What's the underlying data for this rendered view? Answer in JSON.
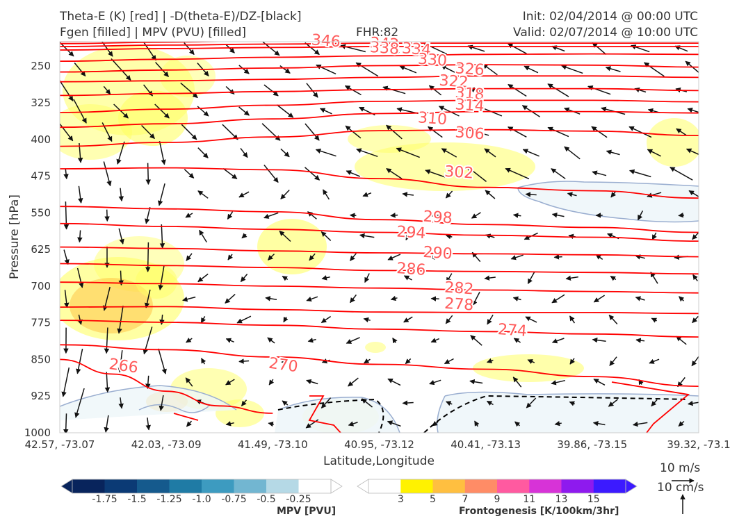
{
  "header": {
    "title_line1": "Theta-E (K) [red] | -D(theta-E)/DZ-[black]",
    "title_line2": "Fgen [filled] | MPV (PVU) [filled]",
    "fhr": "FHR:82",
    "init": "Init: 02/04/2014 @ 00:00 UTC",
    "valid": "Valid: 02/07/2014 @ 10:00 UTC"
  },
  "wind_key": {
    "speed": "10 m/s",
    "vertical": "10 cm/s"
  },
  "colors": {
    "theta_e": "#ff0000",
    "theta_label": "#ff5a5a",
    "mpv_outline": "#9aaed0",
    "fill_yellow": "#ffff66",
    "fill_orange": "#ffbf40"
  },
  "chart_data": {
    "type": "cross-section",
    "xlabel": "Latitude,Longitude",
    "ylabel": "Pressure [hPa]",
    "x_ticks": [
      "42.57, -73.07",
      "42.03, -73.09",
      "41.49, -73.10",
      "40.95, -73.12",
      "40.41, -73.13",
      "39.86, -73.15",
      "39.32, -73.1"
    ],
    "y_ticks": [
      250,
      325,
      400,
      475,
      550,
      625,
      700,
      775,
      850,
      925,
      1000
    ],
    "ylim": [
      1000,
      200
    ],
    "theta_e_contours": [
      {
        "level": 346,
        "label": "346",
        "points": [
          [
            0,
            200
          ],
          [
            1,
            197
          ],
          [
            2,
            194
          ],
          [
            3,
            192
          ],
          [
            4,
            192
          ],
          [
            5,
            192
          ],
          [
            6,
            192
          ]
        ]
      },
      {
        "level": 342,
        "label": "342",
        "points": [
          [
            0,
            204
          ],
          [
            1,
            201
          ],
          [
            2,
            198
          ],
          [
            3,
            196
          ],
          [
            4,
            196
          ],
          [
            5,
            196
          ],
          [
            6,
            196
          ]
        ]
      },
      {
        "level": 338,
        "label": "338",
        "points": [
          [
            0,
            210
          ],
          [
            1,
            207
          ],
          [
            2,
            205
          ],
          [
            3,
            203
          ],
          [
            4,
            203
          ],
          [
            5,
            203
          ],
          [
            6,
            203
          ]
        ]
      },
      {
        "level": 334,
        "label": "334",
        "points": [
          [
            0,
            217
          ],
          [
            1,
            214
          ],
          [
            2,
            212
          ],
          [
            3,
            210
          ],
          [
            4,
            210
          ],
          [
            5,
            210
          ],
          [
            6,
            210
          ]
        ]
      },
      {
        "level": 330,
        "label": "330",
        "points": [
          [
            0,
            240
          ],
          [
            1,
            236
          ],
          [
            2,
            232
          ],
          [
            3,
            229
          ],
          [
            4,
            226
          ],
          [
            5,
            225
          ],
          [
            6,
            226
          ]
        ]
      },
      {
        "level": 326,
        "label": "326",
        "points": [
          [
            0,
            262
          ],
          [
            1,
            258
          ],
          [
            2,
            254
          ],
          [
            3,
            249
          ],
          [
            4,
            247
          ],
          [
            5,
            248
          ],
          [
            6,
            252
          ]
        ]
      },
      {
        "level": 322,
        "label": "322",
        "points": [
          [
            0,
            282
          ],
          [
            1,
            280
          ],
          [
            2,
            277
          ],
          [
            3,
            273
          ],
          [
            4,
            270
          ],
          [
            5,
            270
          ],
          [
            6,
            273
          ]
        ]
      },
      {
        "level": 318,
        "label": "318",
        "points": [
          [
            0,
            310
          ],
          [
            1,
            306
          ],
          [
            2,
            302
          ],
          [
            3,
            298
          ],
          [
            4,
            296
          ],
          [
            5,
            296
          ],
          [
            6,
            300
          ]
        ]
      },
      {
        "level": 314,
        "label": "314",
        "points": [
          [
            0,
            345
          ],
          [
            1,
            338
          ],
          [
            2,
            330
          ],
          [
            3,
            322
          ],
          [
            4,
            320
          ],
          [
            5,
            320
          ],
          [
            6,
            323
          ]
        ]
      },
      {
        "level": 310,
        "label": "310",
        "points": [
          [
            0,
            375
          ],
          [
            1,
            368
          ],
          [
            2,
            358
          ],
          [
            3,
            347
          ],
          [
            4,
            343
          ],
          [
            5,
            343
          ],
          [
            6,
            346
          ]
        ]
      },
      {
        "level": 306,
        "label": "306",
        "points": [
          [
            0,
            414
          ],
          [
            1,
            406
          ],
          [
            2,
            395
          ],
          [
            3,
            382
          ],
          [
            4,
            380
          ],
          [
            5,
            383
          ],
          [
            6,
            392
          ]
        ]
      },
      {
        "level": 302,
        "label": "302",
        "points": [
          [
            0,
            460
          ],
          [
            1,
            458
          ],
          [
            2,
            462
          ],
          [
            3,
            480
          ],
          [
            4,
            498
          ],
          [
            5,
            505
          ],
          [
            6,
            520
          ]
        ]
      },
      {
        "level": 298,
        "label": "298",
        "points": [
          [
            0,
            537
          ],
          [
            1,
            542
          ],
          [
            2,
            548
          ],
          [
            3,
            564
          ],
          [
            4,
            574
          ],
          [
            5,
            580
          ],
          [
            6,
            590
          ]
        ]
      },
      {
        "level": 294,
        "label": "294",
        "points": [
          [
            0,
            572
          ],
          [
            1,
            578
          ],
          [
            2,
            584
          ],
          [
            3,
            590
          ],
          [
            4,
            596
          ],
          [
            5,
            600
          ],
          [
            6,
            608
          ]
        ]
      },
      {
        "level": 290,
        "label": "290",
        "points": [
          [
            0,
            620
          ],
          [
            1,
            623
          ],
          [
            2,
            628
          ],
          [
            3,
            632
          ],
          [
            4,
            634
          ],
          [
            5,
            636
          ],
          [
            6,
            640
          ]
        ]
      },
      {
        "level": 286,
        "label": "286",
        "points": [
          [
            0,
            654
          ],
          [
            1,
            658
          ],
          [
            2,
            662
          ],
          [
            3,
            668
          ],
          [
            4,
            670
          ],
          [
            5,
            672
          ],
          [
            6,
            675
          ]
        ]
      },
      {
        "level": 282,
        "label": "282",
        "points": [
          [
            0,
            692
          ],
          [
            1,
            695
          ],
          [
            2,
            700
          ],
          [
            3,
            704
          ],
          [
            4,
            708
          ],
          [
            5,
            711
          ],
          [
            6,
            714
          ]
        ]
      },
      {
        "level": 278,
        "label": "278",
        "points": [
          [
            0,
            743
          ],
          [
            1,
            742
          ],
          [
            2,
            748
          ],
          [
            3,
            753
          ],
          [
            4,
            754
          ],
          [
            5,
            754
          ],
          [
            6,
            756
          ]
        ]
      },
      {
        "level": 274,
        "label": "274",
        "points": [
          [
            0,
            770
          ],
          [
            1,
            774
          ],
          [
            2,
            780
          ],
          [
            3,
            788
          ],
          [
            4,
            793
          ],
          [
            5,
            798
          ],
          [
            6,
            804
          ]
        ]
      },
      {
        "level": 270,
        "label": "270",
        "points": [
          [
            0,
            820
          ],
          [
            1,
            830
          ],
          [
            2,
            845
          ],
          [
            3,
            860
          ],
          [
            4,
            870
          ],
          [
            5,
            885
          ],
          [
            6,
            905
          ]
        ]
      },
      {
        "level": 266,
        "label": "266",
        "points": [
          [
            0,
            850
          ],
          [
            0.5,
            880
          ],
          [
            1,
            915
          ],
          [
            1.5,
            945
          ],
          [
            2,
            960
          ]
        ]
      }
    ],
    "theta_e_labels": [
      {
        "label": "346",
        "x": 2.5,
        "p": 197
      },
      {
        "label": "342",
        "x": 3.05,
        "p": 203
      },
      {
        "label": "338",
        "x": 3.05,
        "p": 212
      },
      {
        "label": "334",
        "x": 3.35,
        "p": 214
      },
      {
        "label": "330",
        "x": 3.5,
        "p": 236
      },
      {
        "label": "326",
        "x": 3.85,
        "p": 255
      },
      {
        "label": "322",
        "x": 3.7,
        "p": 280
      },
      {
        "label": "318",
        "x": 3.85,
        "p": 305
      },
      {
        "label": "314",
        "x": 3.85,
        "p": 329
      },
      {
        "label": "310",
        "x": 3.5,
        "p": 356
      },
      {
        "label": "306",
        "x": 3.85,
        "p": 386
      },
      {
        "label": "302",
        "x": 3.75,
        "p": 466
      },
      {
        "label": "298",
        "x": 3.55,
        "p": 558
      },
      {
        "label": "294",
        "x": 3.3,
        "p": 589
      },
      {
        "label": "290",
        "x": 3.55,
        "p": 631
      },
      {
        "label": "286",
        "x": 3.3,
        "p": 664
      },
      {
        "label": "282",
        "x": 3.75,
        "p": 703
      },
      {
        "label": "278",
        "x": 3.75,
        "p": 736
      },
      {
        "label": "274",
        "x": 4.25,
        "p": 789
      },
      {
        "label": "270",
        "x": 2.1,
        "p": 860
      },
      {
        "label": "266",
        "x": 0.6,
        "p": 862
      }
    ],
    "mpv_colorbar": {
      "label": "MPV [PVU]",
      "ticks": [
        "-1.75",
        "-1.5",
        "-1.25",
        "-1.0",
        "-0.75",
        "-0.5",
        "-0.25"
      ],
      "colors": [
        "#08245c",
        "#0b3a75",
        "#155a8d",
        "#1f7ba5",
        "#3d9bc0",
        "#72b6d1",
        "#b5d9e6",
        "#ffffff"
      ]
    },
    "fgen_colorbar": {
      "label": "Frontogenesis [K/100km/3hr]",
      "ticks": [
        "3",
        "5",
        "7",
        "9",
        "11",
        "13",
        "15"
      ],
      "colors": [
        "#ffffff",
        "#fff200",
        "#ffbf40",
        "#ff8c66",
        "#ff5aa0",
        "#d733d7",
        "#8e1aee",
        "#3c1aff"
      ]
    }
  }
}
